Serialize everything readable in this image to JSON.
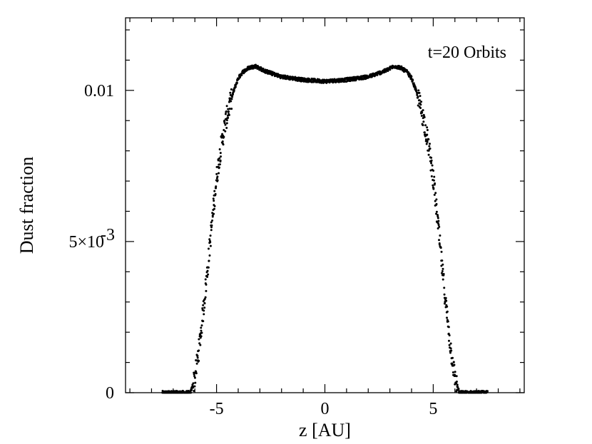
{
  "chart_data": {
    "type": "scatter",
    "title": "",
    "annotation": "t=20 Orbits",
    "xlabel": "z [AU]",
    "ylabel": "Dust fraction",
    "xlim": [
      -9.2,
      9.2
    ],
    "ylim": [
      0,
      0.0124
    ],
    "x_major_ticks": [
      -5,
      0,
      5
    ],
    "x_tick_labels": [
      "-5",
      "0",
      "5"
    ],
    "x_minor_step": 1,
    "y_major_ticks": [
      0,
      0.005,
      0.01
    ],
    "y_tick_labels": [
      "0",
      "5×10",
      "0.01"
    ],
    "y_tick_label_exponent": "-3",
    "y_minor_step": 0.001,
    "grid": false,
    "legend": "none",
    "marker_color": "#000000",
    "profile_points": [
      {
        "z": -7.5,
        "y": 0.0
      },
      {
        "z": -6.2,
        "y": 0.0
      },
      {
        "z": -6.0,
        "y": 0.0005
      },
      {
        "z": -5.8,
        "y": 0.0015
      },
      {
        "z": -5.6,
        "y": 0.0028
      },
      {
        "z": -5.4,
        "y": 0.0042
      },
      {
        "z": -5.2,
        "y": 0.0057
      },
      {
        "z": -5.0,
        "y": 0.0071
      },
      {
        "z": -4.8,
        "y": 0.0081
      },
      {
        "z": -4.6,
        "y": 0.0089
      },
      {
        "z": -4.4,
        "y": 0.0095
      },
      {
        "z": -4.2,
        "y": 0.01
      },
      {
        "z": -4.0,
        "y": 0.0104
      },
      {
        "z": -3.8,
        "y": 0.0106
      },
      {
        "z": -3.5,
        "y": 0.01075
      },
      {
        "z": -3.2,
        "y": 0.0108
      },
      {
        "z": -2.8,
        "y": 0.01065
      },
      {
        "z": -2.0,
        "y": 0.01045
      },
      {
        "z": -1.0,
        "y": 0.01035
      },
      {
        "z": 0.0,
        "y": 0.0103
      },
      {
        "z": 1.0,
        "y": 0.01035
      },
      {
        "z": 2.0,
        "y": 0.01045
      },
      {
        "z": 2.8,
        "y": 0.01065
      },
      {
        "z": 3.2,
        "y": 0.0108
      },
      {
        "z": 3.5,
        "y": 0.01075
      },
      {
        "z": 3.8,
        "y": 0.0106
      },
      {
        "z": 4.0,
        "y": 0.0104
      },
      {
        "z": 4.2,
        "y": 0.01
      },
      {
        "z": 4.4,
        "y": 0.0095
      },
      {
        "z": 4.6,
        "y": 0.0089
      },
      {
        "z": 4.8,
        "y": 0.0081
      },
      {
        "z": 5.0,
        "y": 0.0071
      },
      {
        "z": 5.2,
        "y": 0.0057
      },
      {
        "z": 5.4,
        "y": 0.0042
      },
      {
        "z": 5.6,
        "y": 0.0028
      },
      {
        "z": 5.8,
        "y": 0.0015
      },
      {
        "z": 6.0,
        "y": 0.0005
      },
      {
        "z": 6.2,
        "y": 0.0
      },
      {
        "z": 7.5,
        "y": 0.0
      }
    ]
  }
}
